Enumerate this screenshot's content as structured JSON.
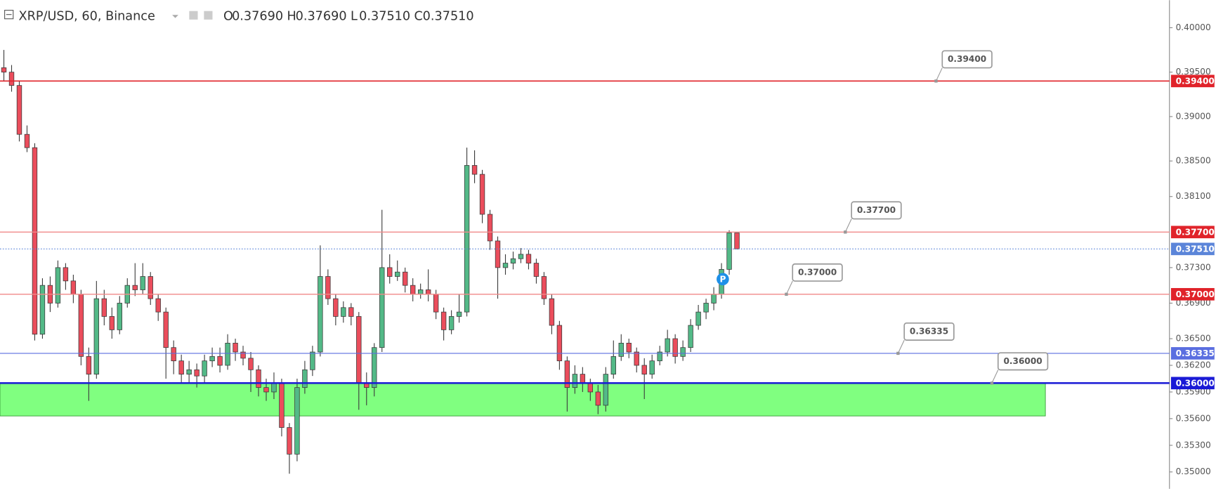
{
  "chart_data": {
    "type": "candlestick",
    "symbol": "XRP/USD, 60, Binance",
    "ohlc_header": [
      {
        "key": "O",
        "value": 0.3769,
        "label": "0.37690"
      },
      {
        "key": "H",
        "value": 0.3769,
        "label": "0.37690"
      },
      {
        "key": "L",
        "value": 0.3751,
        "label": "0.37510"
      },
      {
        "key": "C",
        "value": 0.3751,
        "label": "0.37510"
      }
    ],
    "ylim": [
      0.3481,
      0.4031
    ],
    "yticks": [
      {
        "value": 0.4,
        "label": "0.40000"
      },
      {
        "value": 0.395,
        "label": "0.39500"
      },
      {
        "value": 0.39,
        "label": "0.39000"
      },
      {
        "value": 0.385,
        "label": "0.38500"
      },
      {
        "value": 0.381,
        "label": "0.38100"
      },
      {
        "value": 0.373,
        "label": "0.37300"
      },
      {
        "value": 0.369,
        "label": "0.36900"
      },
      {
        "value": 0.365,
        "label": "0.36500"
      },
      {
        "value": 0.362,
        "label": "0.36200"
      },
      {
        "value": 0.359,
        "label": "0.35900"
      },
      {
        "value": 0.356,
        "label": "0.35600"
      },
      {
        "value": 0.353,
        "label": "0.35300"
      },
      {
        "value": 0.35,
        "label": "0.35000"
      }
    ],
    "up_color": "#53b987",
    "down_color": "#eb4d5c",
    "open": [
      0.3955,
      0.395,
      0.3935,
      0.388,
      0.3865,
      0.3655,
      0.371,
      0.369,
      0.373,
      0.3715,
      0.37,
      0.363,
      0.361,
      0.3695,
      0.3675,
      0.366,
      0.369,
      0.371,
      0.3705,
      0.372,
      0.3695,
      0.368,
      0.364,
      0.3625,
      0.361,
      0.3615,
      0.3608,
      0.3625,
      0.363,
      0.362,
      0.3645,
      0.3635,
      0.3628,
      0.3615,
      0.3595,
      0.359,
      0.36,
      0.355,
      0.352,
      0.3595,
      0.3615,
      0.3635,
      0.372,
      0.3695,
      0.3675,
      0.3685,
      0.3675,
      0.36,
      0.3595,
      0.364,
      0.373,
      0.372,
      0.3725,
      0.371,
      0.37,
      0.3705,
      0.37,
      0.368,
      0.366,
      0.3675,
      0.368,
      0.3845,
      0.3835,
      0.379,
      0.376,
      0.373,
      0.3735,
      0.374,
      0.3745,
      0.3735,
      0.372,
      0.3695,
      0.3665,
      0.3625,
      0.3595,
      0.361,
      0.36,
      0.359,
      0.3575,
      0.361,
      0.363,
      0.3645,
      0.3635,
      0.362,
      0.361,
      0.3625,
      0.3635,
      0.365,
      0.363,
      0.364,
      0.3665,
      0.368,
      0.369,
      0.37,
      0.3728,
      0.3769
    ],
    "high": [
      0.3975,
      0.3958,
      0.394,
      0.389,
      0.387,
      0.3718,
      0.372,
      0.3738,
      0.3735,
      0.3722,
      0.3705,
      0.364,
      0.3715,
      0.3705,
      0.3685,
      0.3698,
      0.3718,
      0.3735,
      0.3735,
      0.3725,
      0.37,
      0.3685,
      0.3648,
      0.3632,
      0.3625,
      0.3622,
      0.3632,
      0.364,
      0.364,
      0.3655,
      0.365,
      0.3642,
      0.3635,
      0.362,
      0.3605,
      0.3612,
      0.3605,
      0.3555,
      0.3605,
      0.3625,
      0.3642,
      0.3755,
      0.3728,
      0.37,
      0.3692,
      0.369,
      0.368,
      0.3612,
      0.3645,
      0.3795,
      0.3745,
      0.3738,
      0.373,
      0.3718,
      0.3712,
      0.3728,
      0.3705,
      0.3685,
      0.3682,
      0.37,
      0.3865,
      0.3862,
      0.384,
      0.3795,
      0.3765,
      0.3745,
      0.3748,
      0.3752,
      0.375,
      0.374,
      0.3725,
      0.37,
      0.367,
      0.363,
      0.362,
      0.3618,
      0.3605,
      0.3598,
      0.3618,
      0.3648,
      0.3655,
      0.365,
      0.364,
      0.3628,
      0.3632,
      0.3642,
      0.366,
      0.3655,
      0.3648,
      0.3672,
      0.3688,
      0.3695,
      0.3708,
      0.3735,
      0.3772,
      0.3769
    ],
    "low": [
      0.394,
      0.3928,
      0.3872,
      0.386,
      0.3648,
      0.365,
      0.368,
      0.3685,
      0.3705,
      0.369,
      0.362,
      0.358,
      0.3605,
      0.3665,
      0.365,
      0.3655,
      0.3685,
      0.3698,
      0.37,
      0.3688,
      0.367,
      0.3605,
      0.361,
      0.36,
      0.36,
      0.3595,
      0.36,
      0.3618,
      0.3612,
      0.3615,
      0.3625,
      0.362,
      0.359,
      0.3585,
      0.358,
      0.3582,
      0.354,
      0.3498,
      0.3512,
      0.3588,
      0.3608,
      0.363,
      0.3688,
      0.3665,
      0.3668,
      0.3665,
      0.357,
      0.3575,
      0.3585,
      0.3635,
      0.3712,
      0.3715,
      0.3702,
      0.3692,
      0.3695,
      0.3692,
      0.3672,
      0.3648,
      0.3655,
      0.3668,
      0.3675,
      0.3825,
      0.378,
      0.375,
      0.3695,
      0.3722,
      0.3728,
      0.3735,
      0.3728,
      0.3712,
      0.3688,
      0.3655,
      0.3615,
      0.3568,
      0.3588,
      0.359,
      0.358,
      0.3565,
      0.3568,
      0.3605,
      0.3625,
      0.3628,
      0.3612,
      0.3582,
      0.3605,
      0.362,
      0.363,
      0.3622,
      0.3625,
      0.3635,
      0.366,
      0.3672,
      0.3682,
      0.3695,
      0.3722,
      0.3751
    ],
    "close": [
      0.395,
      0.3935,
      0.388,
      0.3865,
      0.3655,
      0.371,
      0.369,
      0.373,
      0.3715,
      0.37,
      0.363,
      0.361,
      0.3695,
      0.3675,
      0.366,
      0.369,
      0.371,
      0.3705,
      0.372,
      0.3695,
      0.368,
      0.364,
      0.3625,
      0.361,
      0.3615,
      0.3608,
      0.3625,
      0.363,
      0.362,
      0.3645,
      0.3635,
      0.3628,
      0.3615,
      0.3595,
      0.359,
      0.36,
      0.355,
      0.352,
      0.3595,
      0.3615,
      0.3635,
      0.372,
      0.3695,
      0.3675,
      0.3685,
      0.3675,
      0.36,
      0.3595,
      0.364,
      0.373,
      0.372,
      0.3725,
      0.371,
      0.37,
      0.3705,
      0.37,
      0.368,
      0.366,
      0.3675,
      0.368,
      0.3845,
      0.3835,
      0.379,
      0.376,
      0.373,
      0.3735,
      0.374,
      0.3745,
      0.3735,
      0.372,
      0.3695,
      0.3665,
      0.3625,
      0.3595,
      0.361,
      0.36,
      0.359,
      0.3575,
      0.361,
      0.363,
      0.3645,
      0.3635,
      0.362,
      0.361,
      0.3625,
      0.3635,
      0.365,
      0.363,
      0.364,
      0.3665,
      0.368,
      0.369,
      0.37,
      0.3728,
      0.3769,
      0.3751
    ],
    "zone": {
      "top": 0.36,
      "bottom": 0.3563,
      "color": "#80ff80"
    },
    "levels": [
      {
        "value": 0.394,
        "label": "0.39400",
        "color": "#e0232a",
        "width": 1.5,
        "callout": true
      },
      {
        "value": 0.377,
        "label": "0.37700",
        "color": "#f08a8a",
        "width": 1.2,
        "callout": true
      },
      {
        "value": 0.3751,
        "label": "0.37510",
        "color": "#5b85d9",
        "width": 1,
        "dotted": true,
        "callout": false
      },
      {
        "value": 0.37,
        "label": "0.37000",
        "color": "#f08a8a",
        "width": 1.2,
        "callout": true
      },
      {
        "value": 0.36335,
        "label": "0.36335",
        "color": "#5a6ee0",
        "width": 1,
        "callout": true
      },
      {
        "value": 0.36,
        "label": "0.36000",
        "color": "#1a1ad6",
        "width": 2.2,
        "callout": true
      }
    ],
    "marker": {
      "text": "P",
      "value": 0.3717,
      "color": "#1e90e8"
    }
  }
}
